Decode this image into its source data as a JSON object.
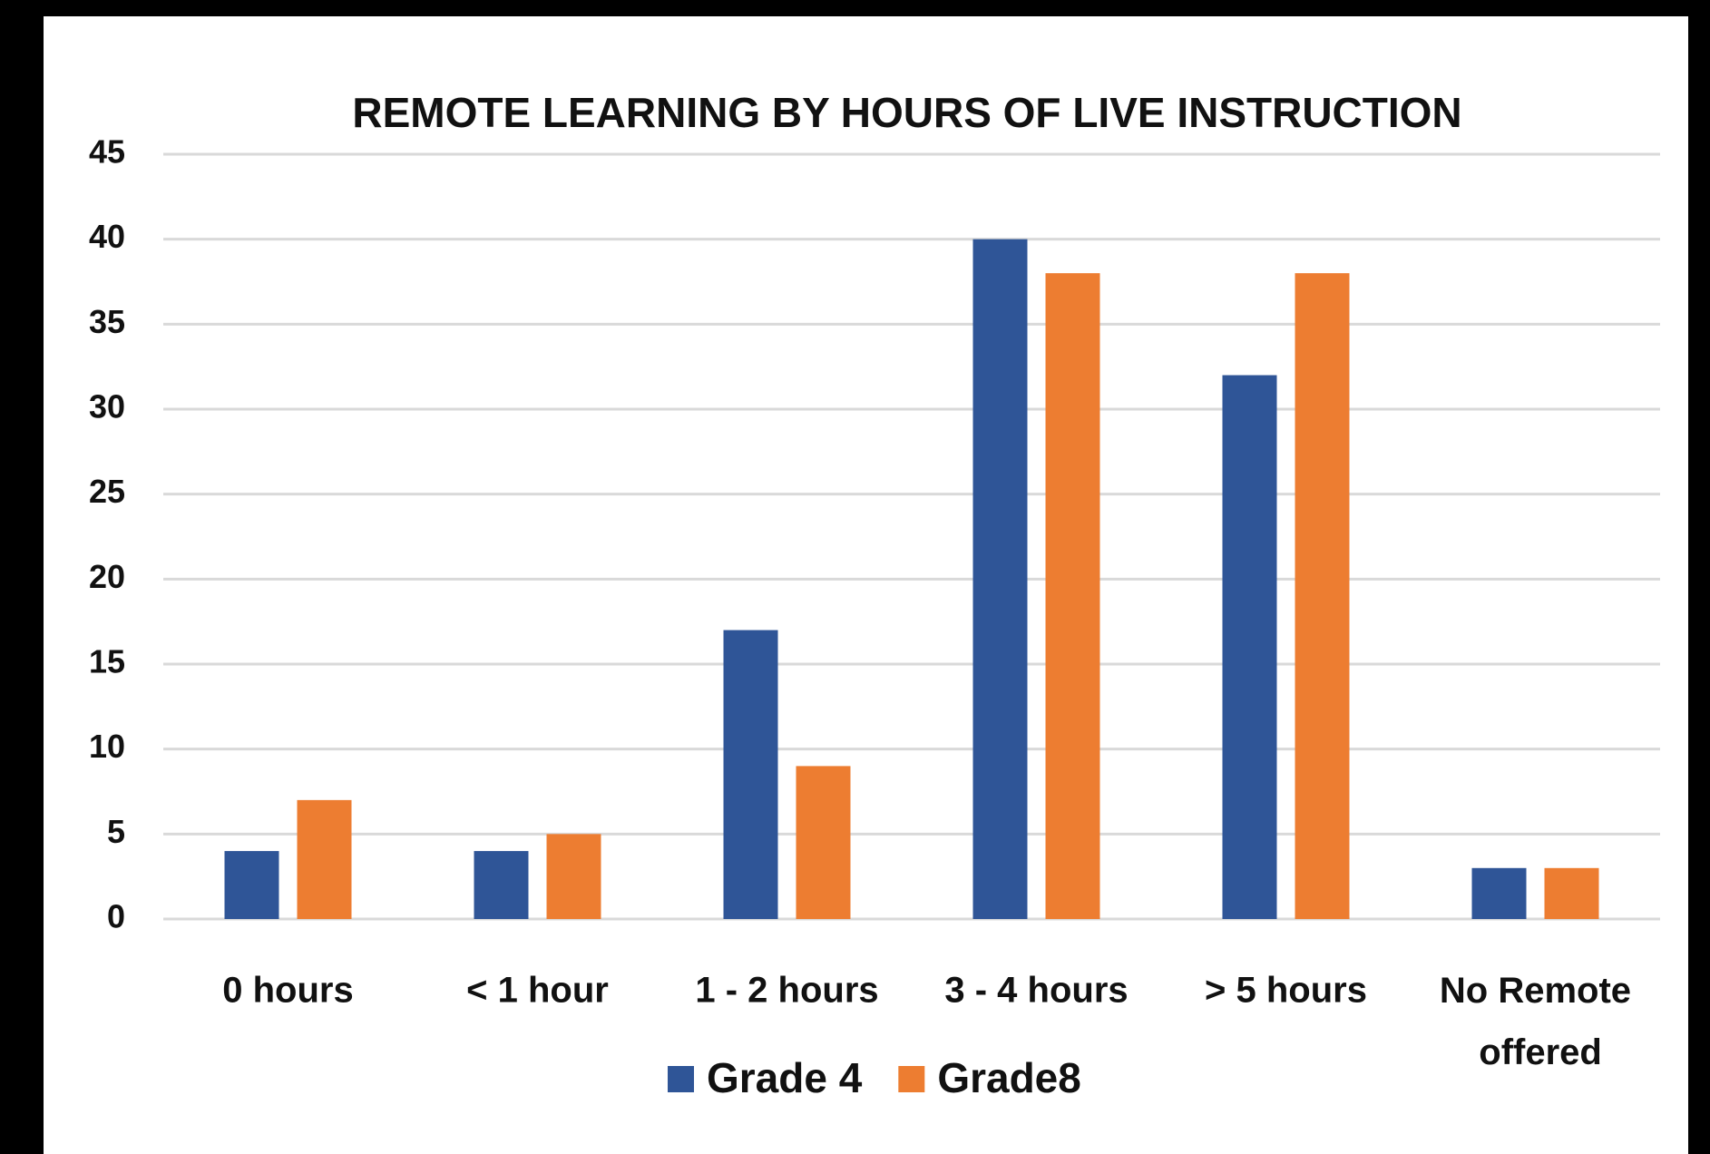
{
  "chart_data": {
    "type": "bar",
    "title": "REMOTE LEARNING BY HOURS OF LIVE INSTRUCTION",
    "categories": [
      "0 hours",
      "< 1 hour",
      "1 - 2 hours",
      "3 - 4 hours",
      "> 5 hours",
      "No Remote offered"
    ],
    "series": [
      {
        "name": "Grade 4",
        "color": "#2f5597",
        "values": [
          4,
          4,
          17,
          40,
          32,
          3
        ]
      },
      {
        "name": "Grade8",
        "color": "#ed7d31",
        "values": [
          7,
          5,
          9,
          38,
          38,
          3
        ]
      }
    ],
    "ylim": [
      0,
      45
    ],
    "yticks": [
      0,
      5,
      10,
      15,
      20,
      25,
      30,
      35,
      40,
      45
    ],
    "grid": true,
    "legend": "bottom"
  }
}
